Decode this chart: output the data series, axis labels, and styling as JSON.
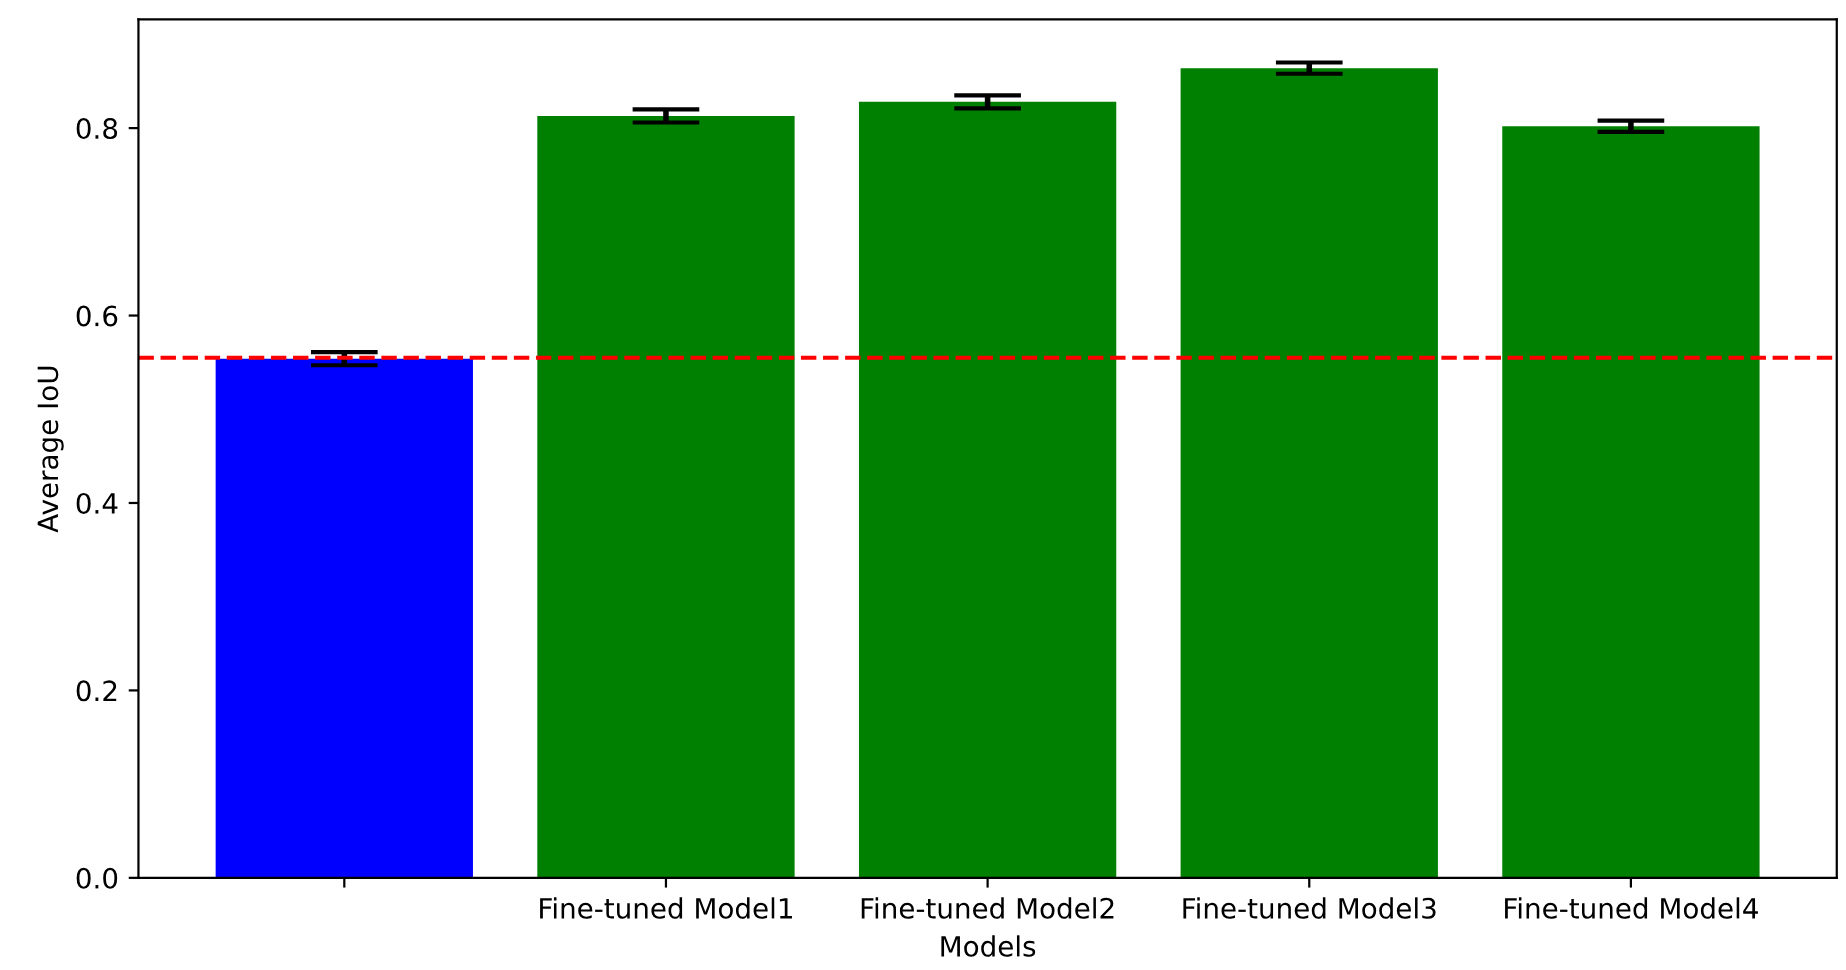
{
  "chart_data": {
    "type": "bar",
    "xlabel": "Models",
    "ylabel": "Average IoU",
    "categories": [
      null,
      "Fine-tuned Model1",
      "Fine-tuned Model2",
      "Fine-tuned Model3",
      "Fine-tuned Model4"
    ],
    "values": [
      0.554,
      0.813,
      0.828,
      0.864,
      0.802
    ],
    "errors": [
      0.007,
      0.007,
      0.007,
      0.006,
      0.006
    ],
    "colors": [
      "#0000ff",
      "#008000",
      "#008000",
      "#008000",
      "#008000"
    ],
    "ylim": [
      0,
      0.916
    ],
    "yticks": [
      {
        "value": 0,
        "label": "0.0"
      },
      0.2,
      0.4,
      0.6,
      0.8
    ],
    "ref_lines": [
      {
        "axis": "y",
        "value": 0.555,
        "color": "#ff0000",
        "line_style": "dashed"
      }
    ],
    "grid": false,
    "legend": false
  }
}
